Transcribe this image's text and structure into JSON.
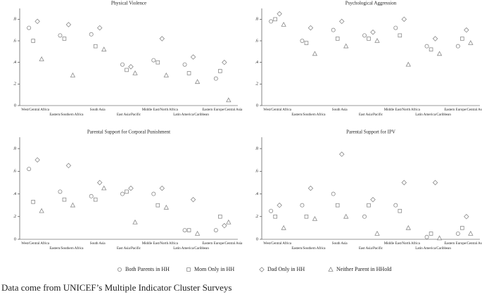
{
  "chart_data": [
    {
      "type": "scatter",
      "title": "Physical Violence",
      "categories": [
        "West/Central Africa",
        "Eastern/Southern Africa",
        "South Asia",
        "East Asia/Pacific",
        "Middle East/North Africa",
        "Latin America/Caribbean",
        "Eastern Europe/Central Asia"
      ],
      "ylim": [
        0,
        0.9
      ],
      "yticks": [
        0,
        {
          "value": 0.2,
          "label": ".2"
        },
        {
          "value": 0.4,
          "label": ".4"
        },
        {
          "value": 0.6,
          "label": ".6"
        },
        {
          "value": 0.8,
          "label": ".8"
        }
      ],
      "series": [
        {
          "name": "Both Parents in HH",
          "marker": "circle",
          "color": "#8a8a8a",
          "values": [
            0.72,
            0.65,
            0.66,
            0.38,
            0.42,
            0.38,
            0.25
          ]
        },
        {
          "name": "Mom Only in HH",
          "marker": "square",
          "color": "#8a8a8a",
          "values": [
            0.6,
            0.62,
            0.55,
            0.33,
            0.4,
            0.3,
            0.32
          ]
        },
        {
          "name": "Dad Only in HH",
          "marker": "diamond",
          "color": "#8a8a8a",
          "values": [
            0.78,
            0.75,
            0.72,
            0.36,
            0.62,
            0.45,
            0.4
          ]
        },
        {
          "name": "Neither Parent in HHold",
          "marker": "triangle",
          "color": "#8a8a8a",
          "values": [
            0.43,
            0.28,
            0.52,
            0.3,
            0.28,
            0.22,
            0.05
          ]
        }
      ]
    },
    {
      "type": "scatter",
      "title": "Psychological Aggression",
      "categories": [
        "West/Central Africa",
        "Eastern/Southern Africa",
        "South Asia",
        "East Asia/Pacific",
        "Middle East/North Africa",
        "Latin America/Caribbean",
        "Eastern Europe/Central Asia"
      ],
      "ylim": [
        0,
        0.9
      ],
      "yticks": [
        0,
        {
          "value": 0.2,
          "label": ".2"
        },
        {
          "value": 0.4,
          "label": ".4"
        },
        {
          "value": 0.6,
          "label": ".6"
        },
        {
          "value": 0.8,
          "label": ".8"
        }
      ],
      "series": [
        {
          "name": "Both Parents in HH",
          "marker": "circle",
          "color": "#8a8a8a",
          "values": [
            0.78,
            0.6,
            0.7,
            0.65,
            0.72,
            0.55,
            0.55
          ]
        },
        {
          "name": "Mom Only in HH",
          "marker": "square",
          "color": "#8a8a8a",
          "values": [
            0.8,
            0.58,
            0.62,
            0.62,
            0.65,
            0.52,
            0.62
          ]
        },
        {
          "name": "Dad Only in HH",
          "marker": "diamond",
          "color": "#8a8a8a",
          "values": [
            0.85,
            0.72,
            0.78,
            0.68,
            0.8,
            0.62,
            0.7
          ]
        },
        {
          "name": "Neither Parent in HHold",
          "marker": "triangle",
          "color": "#8a8a8a",
          "values": [
            0.75,
            0.48,
            0.55,
            0.6,
            0.38,
            0.48,
            0.58
          ]
        }
      ]
    },
    {
      "type": "scatter",
      "title": "Parental Support for Corporal Punishment",
      "categories": [
        "West/Central Africa",
        "Eastern/Southern Africa",
        "South Asia",
        "East Asia/Pacific",
        "Middle East/North Africa",
        "Latin America/Caribbean",
        "Eastern Europe/Central Asia"
      ],
      "ylim": [
        0,
        0.9
      ],
      "yticks": [
        0,
        {
          "value": 0.2,
          "label": ".2"
        },
        {
          "value": 0.4,
          "label": ".4"
        },
        {
          "value": 0.6,
          "label": ".6"
        },
        {
          "value": 0.8,
          "label": ".8"
        }
      ],
      "series": [
        {
          "name": "Both Parents in HH",
          "marker": "circle",
          "color": "#8a8a8a",
          "values": [
            0.62,
            0.42,
            0.38,
            0.4,
            0.4,
            0.08,
            0.08
          ]
        },
        {
          "name": "Mom Only in HH",
          "marker": "square",
          "color": "#8a8a8a",
          "values": [
            0.33,
            0.35,
            0.35,
            0.42,
            0.3,
            0.08,
            0.2
          ]
        },
        {
          "name": "Dad Only in HH",
          "marker": "diamond",
          "color": "#8a8a8a",
          "values": [
            0.7,
            0.65,
            0.5,
            0.45,
            0.45,
            0.35,
            0.12
          ]
        },
        {
          "name": "Neither Parent in HHold",
          "marker": "triangle",
          "color": "#8a8a8a",
          "values": [
            0.25,
            0.3,
            0.45,
            0.15,
            0.28,
            0.05,
            0.15
          ]
        }
      ]
    },
    {
      "type": "scatter",
      "title": "Parental Support for IPV",
      "categories": [
        "West/Central Africa",
        "Eastern/Southern Africa",
        "South Asia",
        "East Asia/Pacific",
        "Middle East/North Africa",
        "Latin America/Caribbean",
        "Eastern Europe/Central Asia"
      ],
      "ylim": [
        0,
        0.9
      ],
      "yticks": [
        0,
        {
          "value": 0.2,
          "label": ".2"
        },
        {
          "value": 0.4,
          "label": ".4"
        },
        {
          "value": 0.6,
          "label": ".6"
        },
        {
          "value": 0.8,
          "label": ".8"
        }
      ],
      "series": [
        {
          "name": "Both Parents in HH",
          "marker": "circle",
          "color": "#8a8a8a",
          "values": [
            0.25,
            0.3,
            0.4,
            0.2,
            0.3,
            0.02,
            0.05
          ]
        },
        {
          "name": "Mom Only in HH",
          "marker": "square",
          "color": "#8a8a8a",
          "values": [
            0.2,
            0.2,
            0.3,
            0.3,
            0.25,
            0.05,
            0.1
          ]
        },
        {
          "name": "Dad Only in HH",
          "marker": "diamond",
          "color": "#8a8a8a",
          "values": [
            0.3,
            0.45,
            0.75,
            0.35,
            0.5,
            0.5,
            0.2
          ]
        },
        {
          "name": "Neither Parent in HHold",
          "marker": "triangle",
          "color": "#8a8a8a",
          "values": [
            0.1,
            0.18,
            0.2,
            0.05,
            0.1,
            0.01,
            0.05
          ]
        }
      ]
    }
  ],
  "caption": "Data come from UNICEF’s Multiple Indicator Cluster Surveys"
}
